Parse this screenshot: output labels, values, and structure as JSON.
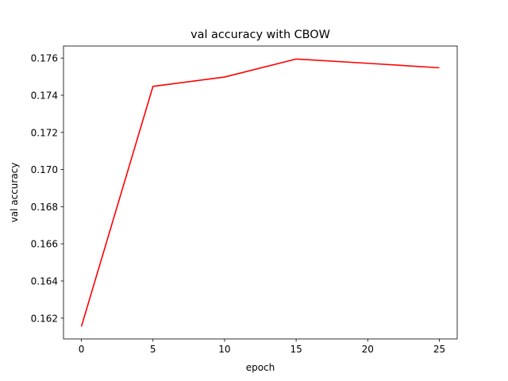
{
  "chart_data": {
    "type": "line",
    "title": "val accuracy with CBOW",
    "xlabel": "epoch",
    "ylabel": "val accuracy",
    "x": [
      0,
      5,
      10,
      15,
      20,
      25
    ],
    "series": [
      {
        "values": [
          0.16155,
          0.17448,
          0.17498,
          0.17595,
          0.17572,
          0.17548
        ],
        "color": "#ff0000"
      }
    ],
    "xlim": [
      -1.25,
      26.25
    ],
    "ylim": [
      0.16088,
      0.17665
    ],
    "xticks": [
      0,
      5,
      10,
      15,
      20,
      25
    ],
    "xtick_labels": [
      "0",
      "5",
      "10",
      "15",
      "20",
      "25"
    ],
    "yticks": [
      0.162,
      0.164,
      0.166,
      0.168,
      0.17,
      0.172,
      0.174,
      0.176
    ],
    "ytick_labels": [
      "0.162",
      "0.164",
      "0.166",
      "0.168",
      "0.170",
      "0.172",
      "0.174",
      "0.176"
    ],
    "grid": false,
    "legend": "none"
  }
}
